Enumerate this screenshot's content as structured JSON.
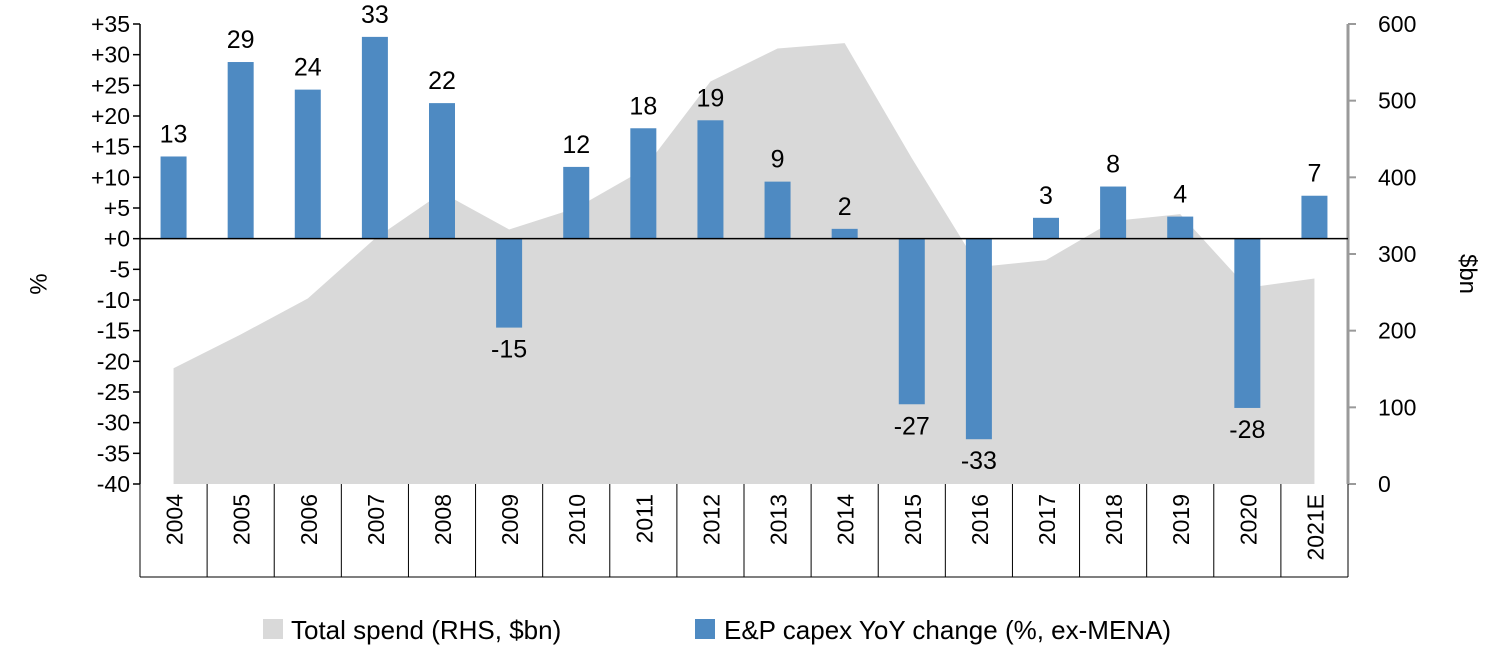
{
  "chart_data": {
    "type": "bar",
    "categories": [
      "2004",
      "2005",
      "2006",
      "2007",
      "2008",
      "2009",
      "2010",
      "2011",
      "2012",
      "2013",
      "2014",
      "2015",
      "2016",
      "2017",
      "2018",
      "2019",
      "2020",
      "2021E"
    ],
    "series": [
      {
        "name": "E&P capex YoY change (%, ex-MENA)",
        "type": "bar",
        "axis": "left",
        "color": "#4e8ac2",
        "values": [
          13.4,
          28.8,
          24.3,
          32.9,
          22.1,
          -14.5,
          11.7,
          18.0,
          19.3,
          9.3,
          1.6,
          -27.0,
          -32.7,
          3.4,
          8.5,
          3.6,
          -27.6,
          7.0
        ],
        "labels": [
          "13",
          "29",
          "24",
          "33",
          "22",
          "-15",
          "12",
          "18",
          "19",
          "9",
          "2",
          "-27",
          "-33",
          "3",
          "8",
          "4",
          "-28",
          "7"
        ]
      },
      {
        "name": "Total spend (RHS, $bn)",
        "type": "area",
        "axis": "right",
        "color": "#d9d9d9",
        "values": [
          151,
          195,
          242,
          320,
          380,
          332,
          360,
          410,
          525,
          568,
          575,
          425,
          283,
          292,
          343,
          352,
          256,
          268
        ]
      }
    ],
    "y_left": {
      "label": "%",
      "min": -40,
      "max": 35,
      "step": 5,
      "tick_labels": [
        "-40",
        "-35",
        "-30",
        "-25",
        "-20",
        "-15",
        "-10",
        "-5",
        "+0",
        "+5",
        "+10",
        "+15",
        "+20",
        "+25",
        "+30",
        "+35"
      ]
    },
    "y_right": {
      "label": "$bn",
      "min": 0,
      "max": 600,
      "step": 100,
      "tick_labels": [
        "0",
        "100",
        "200",
        "300",
        "400",
        "500",
        "600"
      ]
    },
    "grid": false,
    "legend_position": "bottom"
  }
}
